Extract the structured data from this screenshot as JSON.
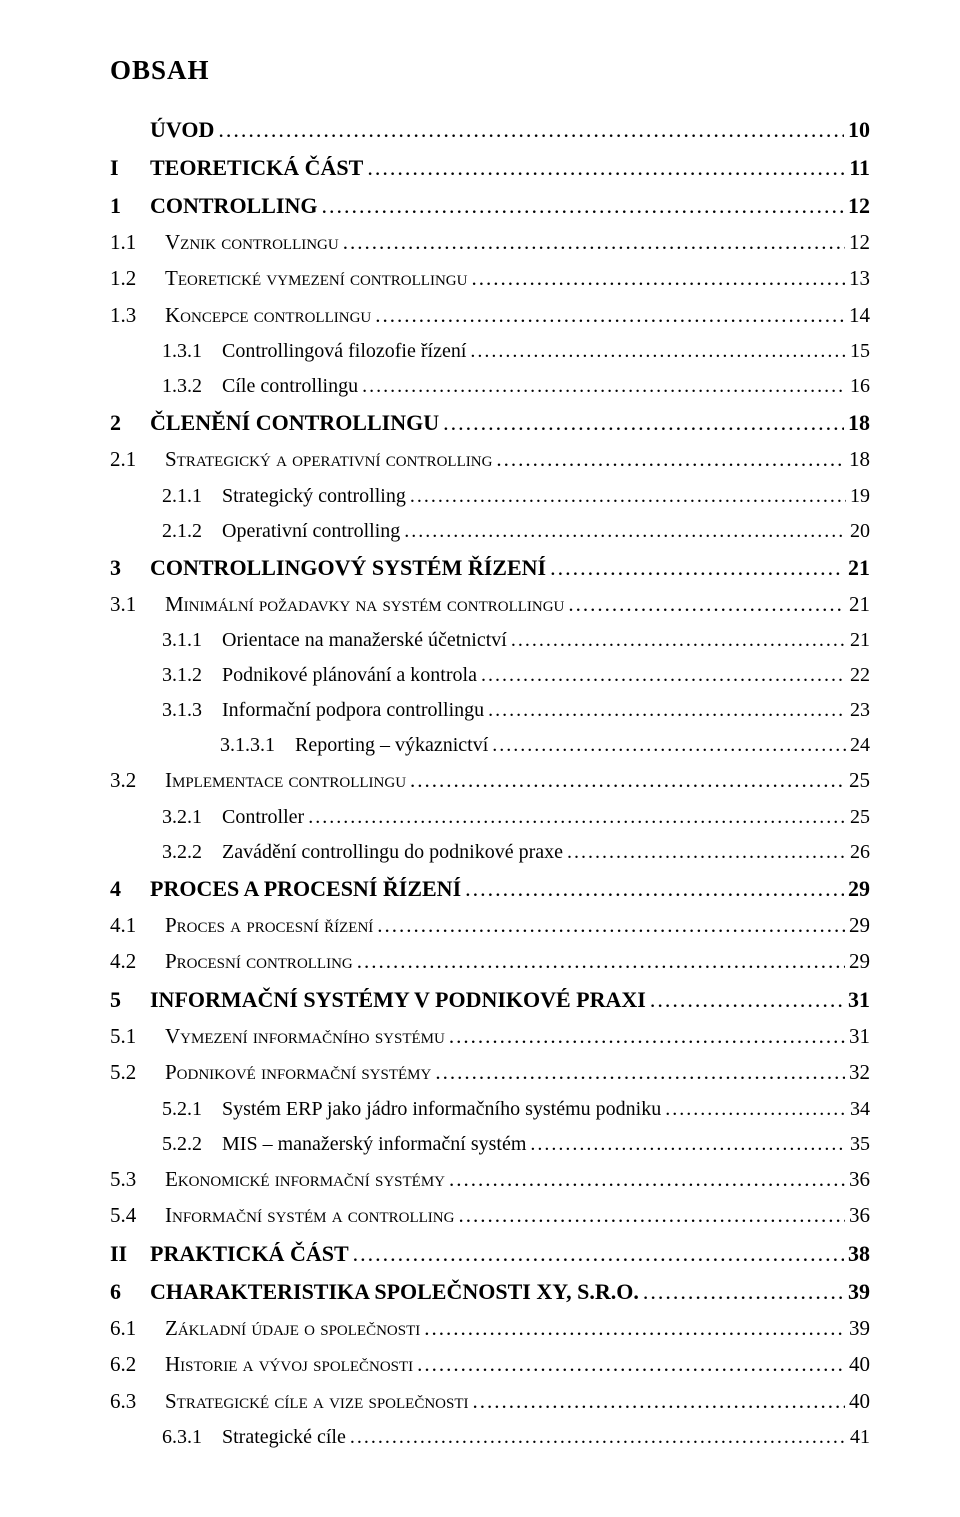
{
  "title": "OBSAH",
  "entries": [
    {
      "level": 0,
      "num": "",
      "text": "ÚVOD",
      "page": "10",
      "bold": true,
      "style": "caps",
      "size": "big"
    },
    {
      "level": 0,
      "num": "I",
      "text": "TEORETICKÁ ČÁST",
      "page": "11",
      "bold": true,
      "style": "caps",
      "size": "big"
    },
    {
      "level": 0,
      "num": "1",
      "text": "CONTROLLING",
      "page": "12",
      "bold": true,
      "style": "caps",
      "size": "big"
    },
    {
      "level": 1,
      "num": "1.1",
      "text": "Vznik controllingu",
      "page": "12",
      "bold": false,
      "style": "sc",
      "size": "mid"
    },
    {
      "level": 1,
      "num": "1.2",
      "text": "Teoretické vymezení controllingu",
      "page": "13",
      "bold": false,
      "style": "sc",
      "size": "mid"
    },
    {
      "level": 1,
      "num": "1.3",
      "text": "Koncepce controllingu",
      "page": "14",
      "bold": false,
      "style": "sc",
      "size": "mid"
    },
    {
      "level": 2,
      "num": "1.3.1",
      "text": "Controllingová filozofie řízení",
      "page": "15",
      "bold": false,
      "style": "",
      "size": "small"
    },
    {
      "level": 2,
      "num": "1.3.2",
      "text": "Cíle controllingu",
      "page": "16",
      "bold": false,
      "style": "",
      "size": "small"
    },
    {
      "level": 0,
      "num": "2",
      "text": "ČLENĚNÍ CONTROLLINGU",
      "page": "18",
      "bold": true,
      "style": "caps",
      "size": "big"
    },
    {
      "level": 1,
      "num": "2.1",
      "text": "Strategický a operativní controlling",
      "page": "18",
      "bold": false,
      "style": "sc",
      "size": "mid"
    },
    {
      "level": 2,
      "num": "2.1.1",
      "text": "Strategický controlling",
      "page": "19",
      "bold": false,
      "style": "",
      "size": "small"
    },
    {
      "level": 2,
      "num": "2.1.2",
      "text": "Operativní controlling",
      "page": "20",
      "bold": false,
      "style": "",
      "size": "small"
    },
    {
      "level": 0,
      "num": "3",
      "text": "CONTROLLINGOVÝ SYSTÉM ŘÍZENÍ",
      "page": "21",
      "bold": true,
      "style": "caps",
      "size": "big"
    },
    {
      "level": 1,
      "num": "3.1",
      "text": "Minimální požadavky na systém controllingu",
      "page": "21",
      "bold": false,
      "style": "sc",
      "size": "mid"
    },
    {
      "level": 2,
      "num": "3.1.1",
      "text": "Orientace na manažerské účetnictví",
      "page": "21",
      "bold": false,
      "style": "",
      "size": "small"
    },
    {
      "level": 2,
      "num": "3.1.2",
      "text": "Podnikové plánování a kontrola",
      "page": "22",
      "bold": false,
      "style": "",
      "size": "small"
    },
    {
      "level": 2,
      "num": "3.1.3",
      "text": "Informační podpora controllingu",
      "page": "23",
      "bold": false,
      "style": "",
      "size": "small"
    },
    {
      "level": 3,
      "num": "3.1.3.1",
      "text": "Reporting – výkaznictví",
      "page": "24",
      "bold": false,
      "style": "",
      "size": "small"
    },
    {
      "level": 1,
      "num": "3.2",
      "text": "Implementace controllingu",
      "page": "25",
      "bold": false,
      "style": "sc",
      "size": "mid"
    },
    {
      "level": 2,
      "num": "3.2.1",
      "text": "Controller",
      "page": "25",
      "bold": false,
      "style": "",
      "size": "small"
    },
    {
      "level": 2,
      "num": "3.2.2",
      "text": "Zavádění controllingu do podnikové praxe",
      "page": "26",
      "bold": false,
      "style": "",
      "size": "small"
    },
    {
      "level": 0,
      "num": "4",
      "text": "PROCES A PROCESNÍ ŘÍZENÍ",
      "page": "29",
      "bold": true,
      "style": "caps",
      "size": "big"
    },
    {
      "level": 1,
      "num": "4.1",
      "text": "Proces a procesní řízení",
      "page": "29",
      "bold": false,
      "style": "sc",
      "size": "mid"
    },
    {
      "level": 1,
      "num": "4.2",
      "text": "Procesní controlling",
      "page": "29",
      "bold": false,
      "style": "sc",
      "size": "mid"
    },
    {
      "level": 0,
      "num": "5",
      "text": "INFORMAČNÍ SYSTÉMY V PODNIKOVÉ PRAXI",
      "page": "31",
      "bold": true,
      "style": "caps",
      "size": "big"
    },
    {
      "level": 1,
      "num": "5.1",
      "text": "Vymezení informačního systému",
      "page": "31",
      "bold": false,
      "style": "sc",
      "size": "mid"
    },
    {
      "level": 1,
      "num": "5.2",
      "text": "Podnikové informační systémy",
      "page": "32",
      "bold": false,
      "style": "sc",
      "size": "mid"
    },
    {
      "level": 2,
      "num": "5.2.1",
      "text": "Systém ERP jako jádro informačního systému podniku",
      "page": "34",
      "bold": false,
      "style": "",
      "size": "small"
    },
    {
      "level": 2,
      "num": "5.2.2",
      "text": "MIS – manažerský informační systém",
      "page": "35",
      "bold": false,
      "style": "",
      "size": "small"
    },
    {
      "level": 1,
      "num": "5.3",
      "text": "Ekonomické informační systémy",
      "page": "36",
      "bold": false,
      "style": "sc",
      "size": "mid"
    },
    {
      "level": 1,
      "num": "5.4",
      "text": "Informační systém a controlling",
      "page": "36",
      "bold": false,
      "style": "sc",
      "size": "mid"
    },
    {
      "level": 0,
      "num": "II",
      "text": "PRAKTICKÁ ČÁST",
      "page": "38",
      "bold": true,
      "style": "caps",
      "size": "big"
    },
    {
      "level": 0,
      "num": "6",
      "text": "CHARAKTERISTIKA SPOLEČNOSTI XY, S.R.O.",
      "page": "39",
      "bold": true,
      "style": "caps",
      "size": "big"
    },
    {
      "level": 1,
      "num": "6.1",
      "text": "Základní údaje o společnosti",
      "page": "39",
      "bold": false,
      "style": "sc",
      "size": "mid"
    },
    {
      "level": 1,
      "num": "6.2",
      "text": "Historie a vývoj společnosti",
      "page": "40",
      "bold": false,
      "style": "sc",
      "size": "mid"
    },
    {
      "level": 1,
      "num": "6.3",
      "text": "Strategické cíle a vize společnosti",
      "page": "40",
      "bold": false,
      "style": "sc",
      "size": "mid"
    },
    {
      "level": 2,
      "num": "6.3.1",
      "text": "Strategické cíle",
      "page": "41",
      "bold": false,
      "style": "",
      "size": "small"
    }
  ]
}
